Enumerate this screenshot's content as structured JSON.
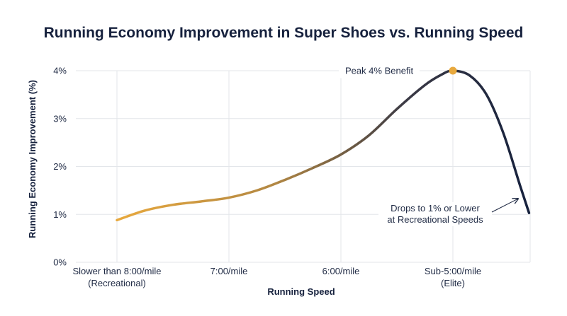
{
  "chart_data": {
    "type": "line",
    "title": "Running Economy Improvement in Super Shoes vs. Running Speed",
    "xlabel": "Running Speed",
    "ylabel": "Running Economy Improvement (%)",
    "x_categories": [
      {
        "line1": "Slower than 8:00/mile",
        "line2": "(Recreational)"
      },
      {
        "line1": "7:00/mile",
        "line2": ""
      },
      {
        "line1": "6:00/mile",
        "line2": ""
      },
      {
        "line1": "Sub-5:00/mile",
        "line2": "(Elite)"
      }
    ],
    "y_ticks": [
      "0%",
      "1%",
      "2%",
      "3%",
      "4%"
    ],
    "ylim": [
      0,
      4
    ],
    "xlim": [
      0,
      3.68
    ],
    "grid": true,
    "series": [
      {
        "x": [
          0,
          0.25,
          0.5,
          0.75,
          1.0,
          1.25,
          1.5,
          1.75,
          2.0,
          2.25,
          2.5,
          2.75,
          2.9,
          3.0,
          3.15,
          3.3,
          3.45,
          3.6,
          3.68
        ],
        "y": [
          0.88,
          1.08,
          1.2,
          1.27,
          1.35,
          1.5,
          1.72,
          1.97,
          2.25,
          2.65,
          3.2,
          3.7,
          3.92,
          4.0,
          3.9,
          3.5,
          2.7,
          1.6,
          1.03
        ],
        "color_start": "#e8a93e",
        "color_end": "#16213d"
      }
    ],
    "annotations": [
      {
        "text": "Peak 4% Benefit",
        "x": 3.0,
        "y": 4.0,
        "marker_color": "#e8a93e"
      },
      {
        "line1": "Drops to 1% or Lower",
        "line2": "at Recreational Speeds",
        "x": 3.6,
        "y": 1.37
      }
    ]
  }
}
